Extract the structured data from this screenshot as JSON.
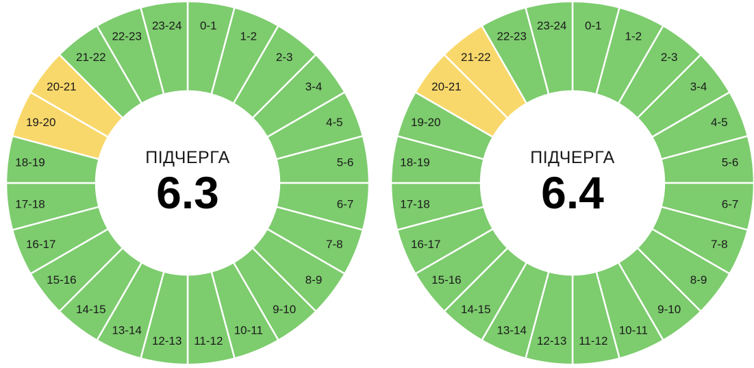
{
  "colors": {
    "on": "#7dcc6e",
    "off": "#f9d86b",
    "separator": "#ffffff",
    "center": "#ffffff"
  },
  "dials": [
    {
      "title": "ПІДЧЕРГА",
      "value": "6.3",
      "segments": [
        {
          "label": "0-1",
          "status": "on"
        },
        {
          "label": "1-2",
          "status": "on"
        },
        {
          "label": "2-3",
          "status": "on"
        },
        {
          "label": "3-4",
          "status": "on"
        },
        {
          "label": "4-5",
          "status": "on"
        },
        {
          "label": "5-6",
          "status": "on"
        },
        {
          "label": "6-7",
          "status": "on"
        },
        {
          "label": "7-8",
          "status": "on"
        },
        {
          "label": "8-9",
          "status": "on"
        },
        {
          "label": "9-10",
          "status": "on"
        },
        {
          "label": "10-11",
          "status": "on"
        },
        {
          "label": "11-12",
          "status": "on"
        },
        {
          "label": "12-13",
          "status": "on"
        },
        {
          "label": "13-14",
          "status": "on"
        },
        {
          "label": "14-15",
          "status": "on"
        },
        {
          "label": "15-16",
          "status": "on"
        },
        {
          "label": "16-17",
          "status": "on"
        },
        {
          "label": "17-18",
          "status": "on"
        },
        {
          "label": "18-19",
          "status": "on"
        },
        {
          "label": "19-20",
          "status": "off"
        },
        {
          "label": "20-21",
          "status": "off"
        },
        {
          "label": "21-22",
          "status": "on"
        },
        {
          "label": "22-23",
          "status": "on"
        },
        {
          "label": "23-24",
          "status": "on"
        }
      ]
    },
    {
      "title": "ПІДЧЕРГА",
      "value": "6.4",
      "segments": [
        {
          "label": "0-1",
          "status": "on"
        },
        {
          "label": "1-2",
          "status": "on"
        },
        {
          "label": "2-3",
          "status": "on"
        },
        {
          "label": "3-4",
          "status": "on"
        },
        {
          "label": "4-5",
          "status": "on"
        },
        {
          "label": "5-6",
          "status": "on"
        },
        {
          "label": "6-7",
          "status": "on"
        },
        {
          "label": "7-8",
          "status": "on"
        },
        {
          "label": "8-9",
          "status": "on"
        },
        {
          "label": "9-10",
          "status": "on"
        },
        {
          "label": "10-11",
          "status": "on"
        },
        {
          "label": "11-12",
          "status": "on"
        },
        {
          "label": "12-13",
          "status": "on"
        },
        {
          "label": "13-14",
          "status": "on"
        },
        {
          "label": "14-15",
          "status": "on"
        },
        {
          "label": "15-16",
          "status": "on"
        },
        {
          "label": "16-17",
          "status": "on"
        },
        {
          "label": "17-18",
          "status": "on"
        },
        {
          "label": "18-19",
          "status": "on"
        },
        {
          "label": "19-20",
          "status": "on"
        },
        {
          "label": "20-21",
          "status": "off"
        },
        {
          "label": "21-22",
          "status": "off"
        },
        {
          "label": "22-23",
          "status": "on"
        },
        {
          "label": "23-24",
          "status": "on"
        }
      ]
    }
  ]
}
